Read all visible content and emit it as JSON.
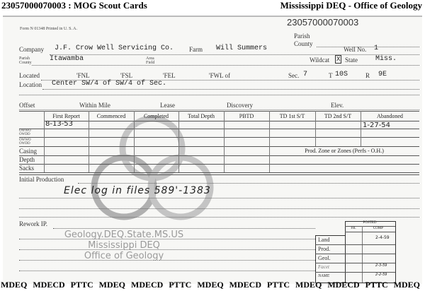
{
  "header": {
    "left": "23057000070003 : MOG Scout Cards",
    "right": "Mississippi DEQ - Office of Geology"
  },
  "card": {
    "number": "23057000070003",
    "form_line": "Form N 01348 Printed in U. S. A.",
    "parish_label": "Parish",
    "county_label": "County",
    "company_label": "Company",
    "company": "J.F. Crow Well Servicing Co.",
    "farm_label": "Farm",
    "farm": "Will Summers",
    "well_no_label": "Well No.",
    "well_no": "1",
    "parish_county_label": "Parish County",
    "county": "Itawamba",
    "area_field_label": "Area Field",
    "wildcat_label": "Wildcat",
    "wildcat_mark": "X",
    "state_label": "State",
    "state": "Miss.",
    "located_label": "Located",
    "fnl": "'FNL",
    "fsl": "'FSL",
    "fel": "'FEL",
    "fwl": "'FWL of",
    "sec_label": "Sec.",
    "sec": "7",
    "t_label": "T",
    "township": "10S",
    "r_label": "R",
    "range": "9E",
    "location_label": "Location",
    "location": "Center SW/4 of SW/4 of Sec.",
    "offset_label": "Offset",
    "within_mile_label": "Within Mile",
    "lease_label": "Lease",
    "discovery_label": "Discovery",
    "elev_label": "Elev.",
    "columns": [
      "First Report",
      "Commenced",
      "Completed",
      "Total Depth",
      "PBTD",
      "TD 1st S/T",
      "TD 2nd S/T",
      "Abandoned"
    ],
    "first_report": "8-13-53",
    "abandoned": "1-27-54",
    "ow_label": "OWWO OWDD",
    "row_labels": [
      "Casing",
      "Depth",
      "Sacks"
    ],
    "prod_zone_label": "Prod. Zone or Zones (Perfs - O.H.)",
    "initial_production_label": "Initial Production",
    "handwritten_note": "Elec log in files 589'-1383",
    "rework_label": "Rework IP.",
    "posted": {
      "title": "POSTED",
      "cols": [
        "FR.",
        "COMP"
      ],
      "rows": [
        {
          "label": "Land",
          "comp": "2-4-59"
        },
        {
          "label": "Prod.",
          "comp": ""
        },
        {
          "label": "Geol.",
          "comp": ""
        },
        {
          "label": "Facet",
          "comp": "2-3-59"
        },
        {
          "label": "NAME",
          "comp": "2-2-59"
        }
      ]
    }
  },
  "watermark": [
    "Geology.DEQ.State.MS.US",
    "Mississippi DEQ",
    "Office of Geology"
  ],
  "footer": "MDEQ MDECD PTTC MDEQ MDECD PTTC MDEQ MDECD PTTC MDEQ MDECD PTTC MDEQ"
}
